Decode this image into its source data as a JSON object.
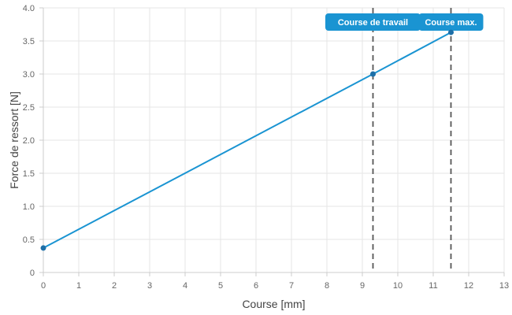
{
  "chart_data": {
    "type": "line",
    "xlabel": "Course [mm]",
    "ylabel": "Force de ressort [N]",
    "xlim": [
      0,
      13
    ],
    "ylim": [
      0,
      4
    ],
    "x_ticks": [
      "0",
      "1",
      "2",
      "3",
      "4",
      "5",
      "6",
      "7",
      "8",
      "9",
      "10",
      "11",
      "12",
      "13"
    ],
    "y_ticks": [
      "0",
      "0.5",
      "1.0",
      "1.5",
      "2.0",
      "2.5",
      "3.0",
      "3.5",
      "4.0"
    ],
    "grid": true,
    "series": [
      {
        "x": [
          0,
          9.3,
          11.5
        ],
        "y": [
          0.37,
          3.0,
          3.63
        ]
      }
    ],
    "annotations": [
      {
        "label": "Course de travail",
        "x": 9.3,
        "line_style": "dashed"
      },
      {
        "label": "Course max.",
        "x": 11.5,
        "line_style": "dashed"
      }
    ],
    "colors": {
      "series": "#1a94d2",
      "marker": "#1d6fa8",
      "annotation_line": "#555555",
      "annotation_box": "#1a94d2",
      "grid": "#e6e6e6",
      "axis": "#cccccc"
    }
  }
}
